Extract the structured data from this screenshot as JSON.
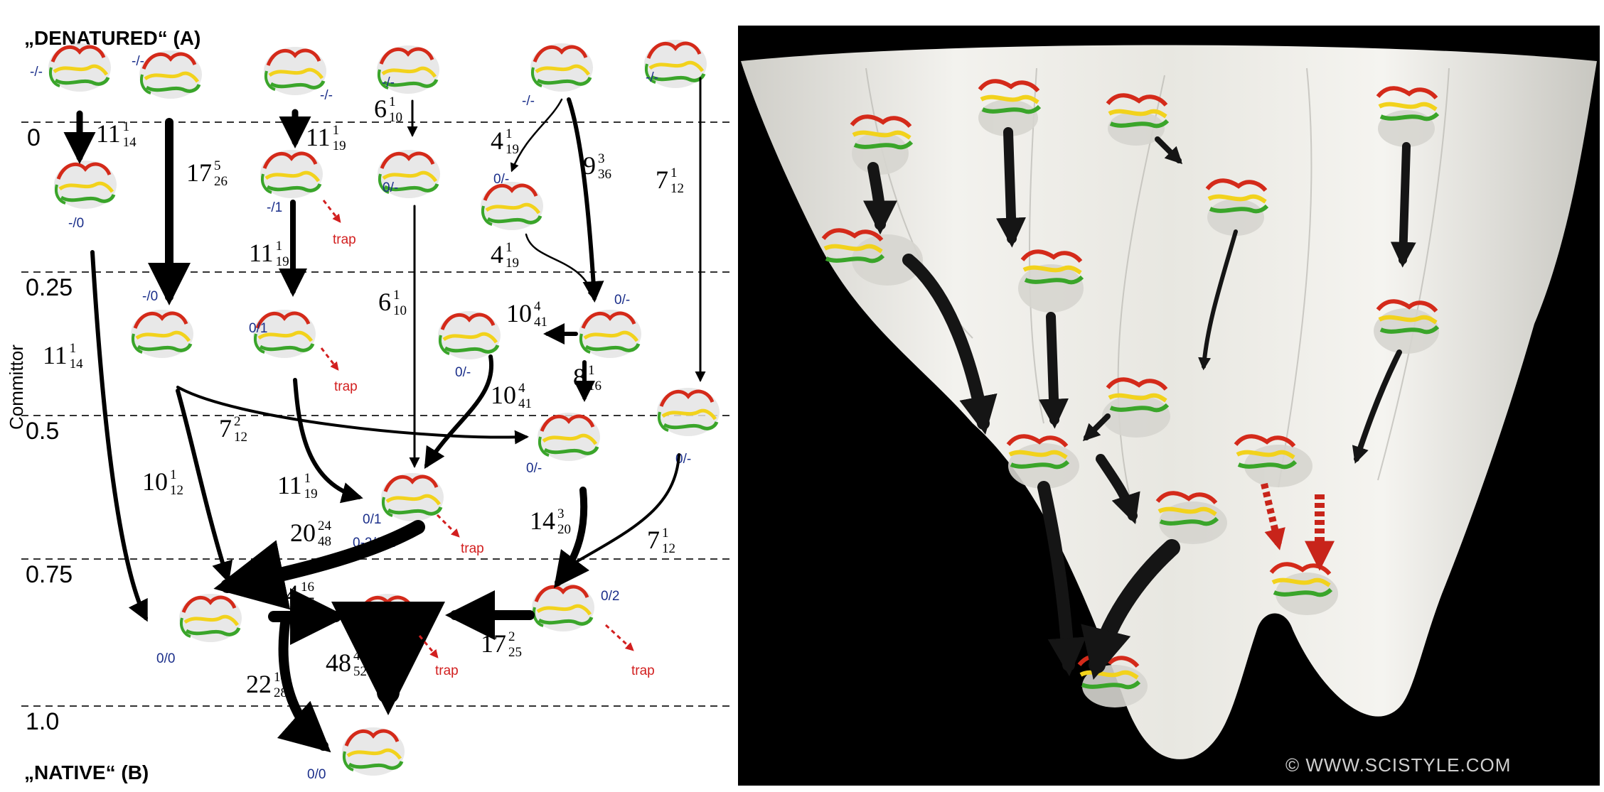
{
  "labels": {
    "denatured": "„DENATURED“ (A)",
    "native": "„NATIVE“ (B)",
    "y_axis": "Committor",
    "watermark": "© WWW.SCISTYLE.COM",
    "trap": "trap"
  },
  "commitor_ticks": [
    "0",
    "0.25",
    "0.5",
    "0.75",
    "1.0"
  ],
  "states": {
    "d1": "-/-",
    "d2": "-/-",
    "d3": "-/-",
    "d4": "-/-",
    "d5": "-/-",
    "d6": "-/-",
    "s_m0": "-/0",
    "s_m1": "-/1",
    "s_0m_a": "0/-",
    "s_0m_b": "0/-",
    "s_m0b": "-/0",
    "s_01a": "0/1",
    "s_0m_c": "0/-",
    "s_0m_d": "0/-",
    "s_0m_e": "0/-",
    "s_0m_f": "0/-",
    "s_01b": "0/1",
    "s_0202": "0-2/0-2",
    "s_02": "0/2",
    "s_00a": "0/0",
    "s_00b": "0/0"
  },
  "rates": [
    {
      "id": "r1",
      "base": "11",
      "sup": "1",
      "sub": "14"
    },
    {
      "id": "r2",
      "base": "17",
      "sup": "5",
      "sub": "26"
    },
    {
      "id": "r3",
      "base": "11",
      "sup": "1",
      "sub": "19"
    },
    {
      "id": "r4",
      "base": "6",
      "sup": "1",
      "sub": "10"
    },
    {
      "id": "r5",
      "base": "4",
      "sup": "1",
      "sub": "19"
    },
    {
      "id": "r6",
      "base": "9",
      "sup": "3",
      "sub": "36"
    },
    {
      "id": "r7",
      "base": "7",
      "sup": "1",
      "sub": "12"
    },
    {
      "id": "r8",
      "base": "11",
      "sup": "1",
      "sub": "19"
    },
    {
      "id": "r9",
      "base": "4",
      "sup": "1",
      "sub": "19"
    },
    {
      "id": "r10",
      "base": "6",
      "sup": "1",
      "sub": "10"
    },
    {
      "id": "r11",
      "base": "10",
      "sup": "4",
      "sub": "41"
    },
    {
      "id": "r12",
      "base": "11",
      "sup": "1",
      "sub": "14"
    },
    {
      "id": "r13",
      "base": "8",
      "sup": "1",
      "sub": "16"
    },
    {
      "id": "r14",
      "base": "10",
      "sup": "4",
      "sub": "41"
    },
    {
      "id": "r15",
      "base": "7",
      "sup": "2",
      "sub": "12"
    },
    {
      "id": "r16",
      "base": "10",
      "sup": "1",
      "sub": "12"
    },
    {
      "id": "r17",
      "base": "11",
      "sup": "1",
      "sub": "19"
    },
    {
      "id": "r18",
      "base": "20",
      "sup": "24",
      "sub": "48"
    },
    {
      "id": "r19",
      "base": "14",
      "sup": "3",
      "sub": "20"
    },
    {
      "id": "r20",
      "base": "7",
      "sup": "1",
      "sub": "12"
    },
    {
      "id": "r21",
      "base": "24",
      "sup": "16",
      "sub": "47"
    },
    {
      "id": "r22",
      "base": "17",
      "sup": "2",
      "sub": "25"
    },
    {
      "id": "r23",
      "base": "48",
      "sup": "42",
      "sub": "52"
    },
    {
      "id": "r24",
      "base": "22",
      "sup": "18",
      "sub": "28"
    }
  ],
  "colors": {
    "helix": "#d42a1a",
    "strand_yellow": "#f2d21c",
    "strand_green": "#3aa52a",
    "arrow": "#000000",
    "trap_arrow": "#d21f1f",
    "state_label": "#1a2e8a",
    "surface": "#ecebe6"
  }
}
